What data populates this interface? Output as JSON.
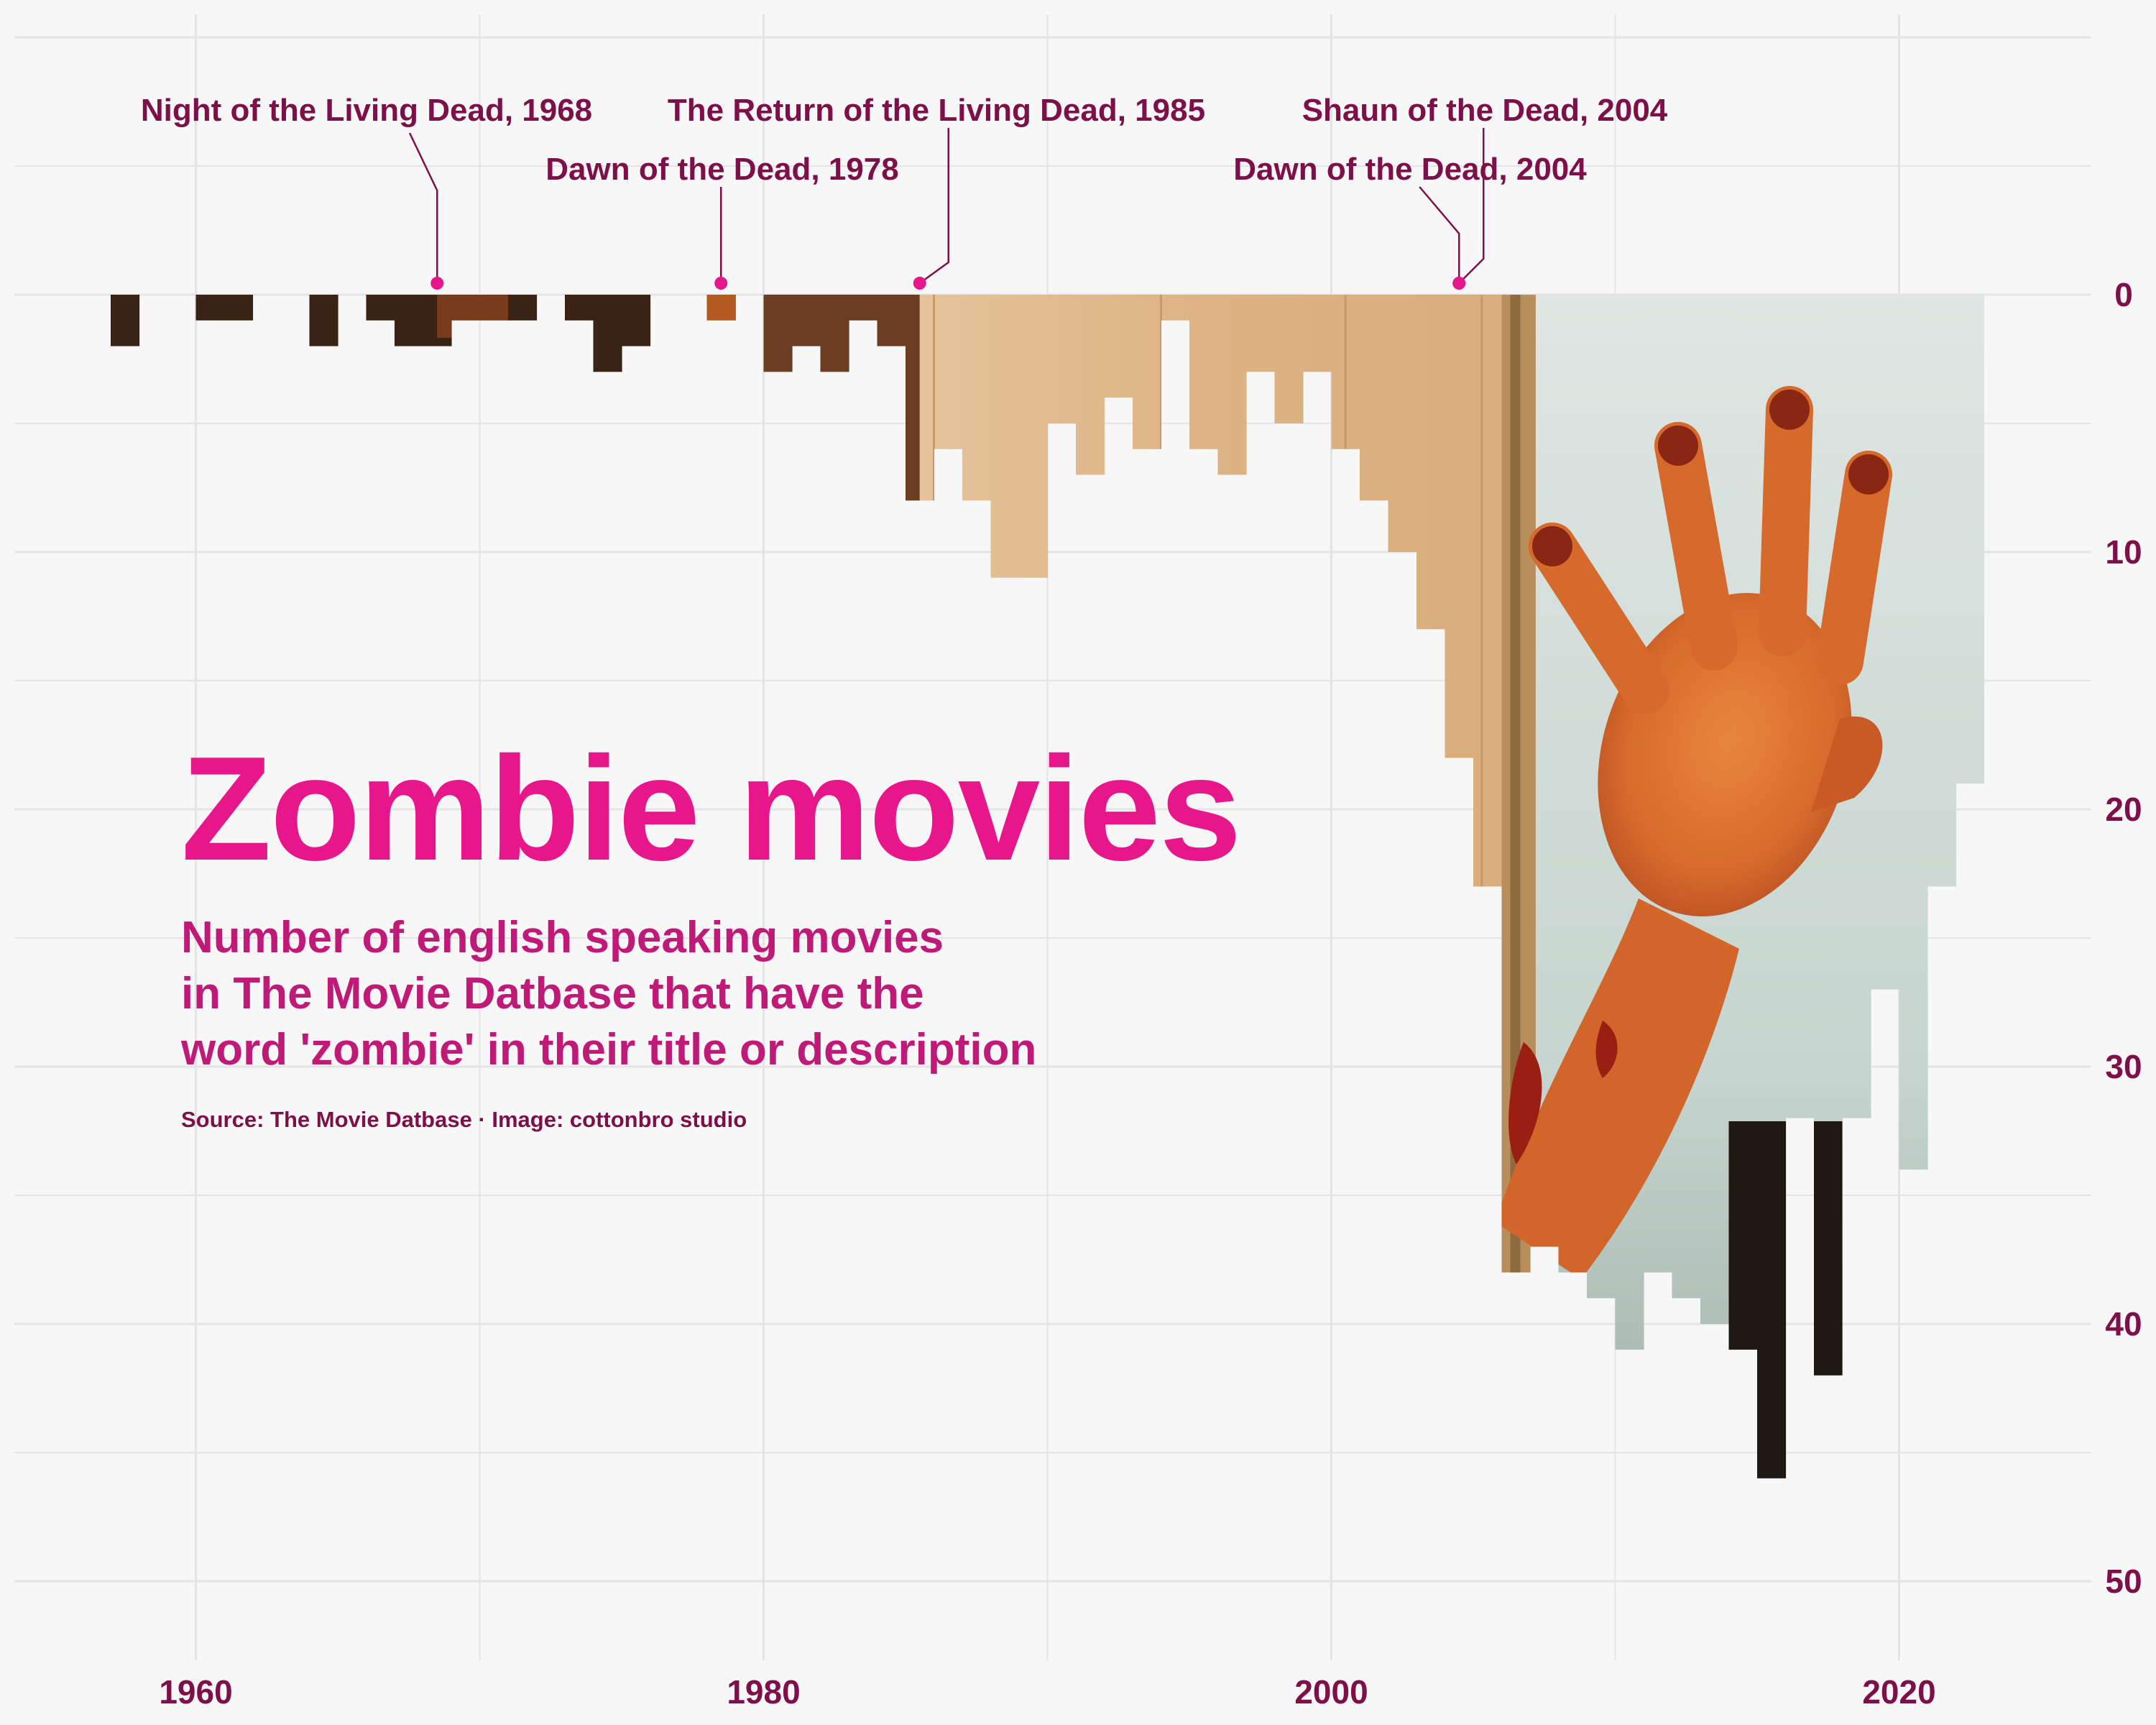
{
  "chart_data": {
    "type": "bar",
    "title": "Zombie movies",
    "subtitle_lines": [
      "Number of english speaking movies",
      "in The Movie Datbase that have the",
      "word 'zombie' in their title or description"
    ],
    "source": "Source: The Movie Datbase · Image: cottonbro studio",
    "orientation": "downward",
    "xlim": [
      1953,
      2026
    ],
    "ylim": [
      0,
      52
    ],
    "x_ticks": [
      1960,
      1980,
      2000,
      2020
    ],
    "y_ticks": [
      0,
      10,
      20,
      30,
      40,
      50
    ],
    "grid": true,
    "x": [
      1957,
      1958,
      1959,
      1960,
      1961,
      1962,
      1963,
      1964,
      1965,
      1966,
      1967,
      1968,
      1969,
      1970,
      1971,
      1972,
      1973,
      1974,
      1975,
      1976,
      1977,
      1978,
      1979,
      1980,
      1981,
      1982,
      1983,
      1984,
      1985,
      1986,
      1987,
      1988,
      1989,
      1990,
      1991,
      1992,
      1993,
      1994,
      1995,
      1996,
      1997,
      1998,
      1999,
      2000,
      2001,
      2002,
      2003,
      2004,
      2005,
      2006,
      2007,
      2008,
      2009,
      2010,
      2011,
      2012,
      2013,
      2014,
      2015,
      2016,
      2017,
      2018,
      2019,
      2020,
      2021,
      2022
    ],
    "values": [
      2,
      0,
      0,
      1,
      1,
      0,
      0,
      2,
      0,
      1,
      2,
      2,
      1,
      1,
      1,
      0,
      1,
      3,
      2,
      0,
      0,
      1,
      0,
      3,
      2,
      3,
      1,
      2,
      8,
      6,
      8,
      11,
      11,
      5,
      7,
      4,
      6,
      1,
      6,
      7,
      3,
      5,
      3,
      6,
      8,
      10,
      13,
      18,
      23,
      38,
      37,
      38,
      39,
      41,
      38,
      39,
      40,
      41,
      46,
      32,
      42,
      32,
      27,
      34,
      23,
      19
    ],
    "annotations": [
      {
        "label": "Night of the Living Dead, 1968",
        "year": 1968
      },
      {
        "label": "Dawn of the Dead, 1978",
        "year": 1978
      },
      {
        "label": "The Return of the Living Dead, 1985",
        "year": 1985
      },
      {
        "label": "Shaun of the Dead, 2004",
        "year": 2004
      },
      {
        "label": "Dawn of the Dead, 2004",
        "year": 2004
      }
    ],
    "colors": {
      "background": "#f7f7f7",
      "grid": "#e4e4e4",
      "text_dark": "#7d1048",
      "title": "#e8168b",
      "subtitle": "#c01a78",
      "annotation_point": "#e8168b",
      "bar_wall": "#dcb384",
      "bar_dark": "#3a2214",
      "bar_window": "#c3d3cd",
      "bar_skin": "#e07a38"
    }
  }
}
